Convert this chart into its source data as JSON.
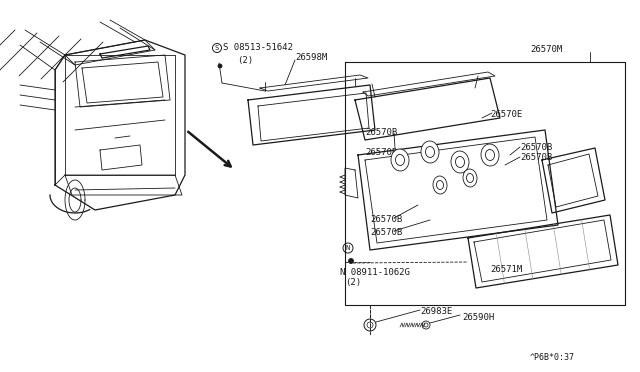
{
  "bg_color": "#ffffff",
  "line_color": "#1a1a1a",
  "fig_width": 6.4,
  "fig_height": 3.72,
  "footer_text": "^P6B*0:37",
  "labels": {
    "S_label": "S 08513-51642",
    "S_label2": "(2)",
    "N_label": "N 08911-1062G",
    "N_label2": "(2)",
    "part_26598M": "26598M",
    "part_26570M": "26570M",
    "part_26570E": "26570E",
    "part_26570B": "26570B",
    "part_26571M": "26571M",
    "part_26983E": "26983E",
    "part_26590H": "26590H"
  }
}
